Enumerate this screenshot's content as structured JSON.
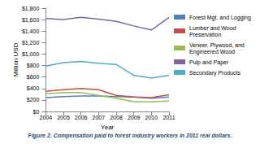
{
  "chart_data": {
    "type": "line",
    "title": "Figure 2. Compensation paid to forest industry workers in 2011 real dollars.",
    "x_label": "Year",
    "y_label": "Million USD",
    "categories": [
      "2004",
      "2005",
      "2006",
      "2007",
      "2008",
      "2009",
      "2010",
      "2011"
    ],
    "series": [
      {
        "name": "Forest Mgt. and Logging",
        "color": "#4f81bd",
        "values": [
          240,
          260,
          270,
          270,
          260,
          250,
          230,
          250
        ]
      },
      {
        "name": "Lumber and Wood Preservation",
        "color": "#c0504d",
        "values": [
          350,
          380,
          400,
          380,
          280,
          250,
          240,
          290
        ]
      },
      {
        "name": "Veneer, Plywood, and Engineered Wood",
        "color": "#9bbb59",
        "values": [
          310,
          330,
          330,
          280,
          230,
          170,
          170,
          180
        ]
      },
      {
        "name": "Pulp and Paper",
        "color": "#8064a2",
        "values": [
          1620,
          1600,
          1640,
          1610,
          1570,
          1490,
          1420,
          1640
        ]
      },
      {
        "name": "Secondary Products",
        "color": "#4bacc6",
        "values": [
          790,
          850,
          870,
          840,
          820,
          630,
          580,
          630
        ]
      }
    ],
    "ylim": [
      0,
      1800
    ],
    "yticks": [
      {
        "value": 0,
        "label": "$0"
      },
      {
        "value": 200,
        "label": "$200"
      },
      {
        "value": 400,
        "label": "$400"
      },
      {
        "value": 600,
        "label": "$600"
      },
      {
        "value": 800,
        "label": "$800"
      },
      {
        "value": 1000,
        "label": "$1,000"
      },
      {
        "value": 1200,
        "label": "$1,200"
      },
      {
        "value": 1400,
        "label": "$1,400"
      },
      {
        "value": 1600,
        "label": "$1,600"
      },
      {
        "value": 1800,
        "label": "$1,800"
      }
    ],
    "grid": false,
    "legend": "right"
  }
}
